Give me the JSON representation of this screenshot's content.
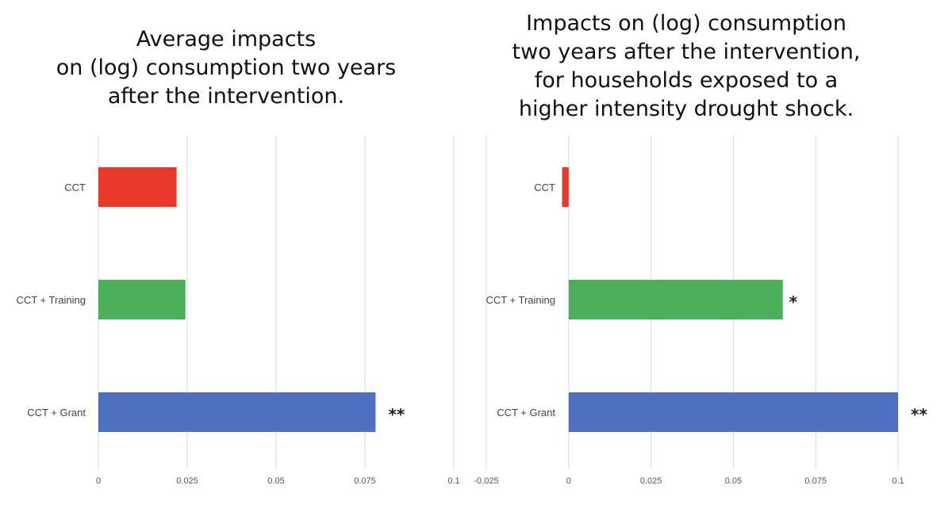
{
  "chart_data": [
    {
      "type": "bar",
      "orientation": "horizontal",
      "title": "Average impacts on (log) consumption two years after the intervention.",
      "title_lines": [
        "Average impacts",
        "on (log) consumption two years",
        "after the intervention."
      ],
      "categories": [
        "CCT",
        "CCT + Training",
        "CCT + Grant"
      ],
      "values": [
        0.022,
        0.0245,
        0.078
      ],
      "annotations": [
        "",
        "",
        "**"
      ],
      "colors": [
        "#E8392B",
        "#4CAF5A",
        "#4F70C0"
      ],
      "xlim": [
        0,
        0.1
      ],
      "xticks": [
        0,
        0.025,
        0.05,
        0.075,
        0.1
      ],
      "xtick_labels": [
        "0",
        "0.025",
        "0.05",
        "0.075",
        "0.1"
      ],
      "grid": true
    },
    {
      "type": "bar",
      "orientation": "horizontal",
      "title": "Impacts on (log) consumption two years after the intervention, for households exposed to a higher intensity drought shock.",
      "title_lines": [
        "Impacts on (log) consumption",
        "two years after the intervention,",
        "for households exposed to a",
        "higher intensity drought shock."
      ],
      "categories": [
        "CCT",
        "CCT + Training",
        "CCT + Grant"
      ],
      "values": [
        -0.002,
        0.065,
        0.1
      ],
      "annotations": [
        "",
        "*",
        "**"
      ],
      "colors": [
        "#E8392B",
        "#4CAF5A",
        "#4F70C0"
      ],
      "xlim": [
        -0.025,
        0.1
      ],
      "xticks": [
        -0.025,
        0,
        0.025,
        0.05,
        0.075,
        0.1
      ],
      "xtick_labels": [
        "-0.025",
        "0",
        "0.025",
        "0.05",
        "0.075",
        "0.1"
      ],
      "grid": true
    }
  ]
}
